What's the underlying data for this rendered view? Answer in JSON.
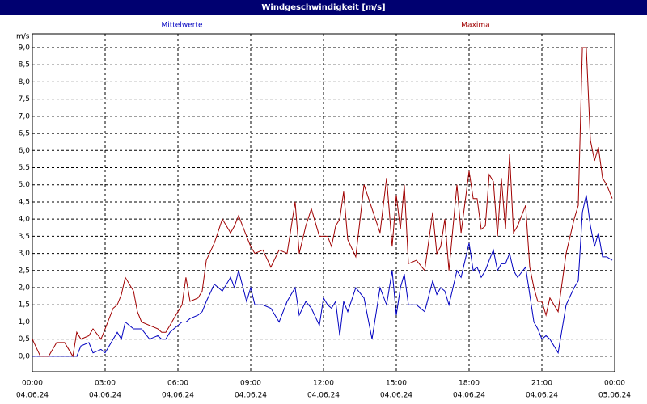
{
  "chart_data": {
    "type": "line",
    "title": "Windgeschwindigkeit [m/s]",
    "y_unit": "m/s",
    "x": [
      0,
      0.33,
      0.67,
      1,
      1.33,
      1.67,
      1.83,
      2,
      2.33,
      2.5,
      2.83,
      3,
      3.33,
      3.5,
      3.67,
      3.83,
      4.17,
      4.33,
      4.5,
      4.83,
      5.17,
      5.33,
      5.5,
      5.67,
      5.83,
      6.17,
      6.33,
      6.5,
      6.83,
      7,
      7.17,
      7.5,
      7.83,
      8.17,
      8.33,
      8.5,
      8.83,
      9,
      9.17,
      9.5,
      9.83,
      10.17,
      10.5,
      10.83,
      11,
      11.27,
      11.5,
      11.83,
      12,
      12.17,
      12.33,
      12.5,
      12.67,
      12.83,
      13,
      13.33,
      13.67,
      14,
      14.33,
      14.6,
      14.83,
      15,
      15.17,
      15.33,
      15.5,
      15.83,
      16.17,
      16.5,
      16.67,
      16.83,
      17,
      17.17,
      17.5,
      17.67,
      18,
      18.17,
      18.33,
      18.5,
      18.67,
      18.83,
      19,
      19.17,
      19.33,
      19.5,
      19.67,
      19.83,
      20,
      20.33,
      20.5,
      20.67,
      20.83,
      21,
      21.17,
      21.33,
      21.67,
      22,
      22.33,
      22.5,
      22.67,
      22.83,
      23,
      23.17,
      23.33,
      23.5,
      23.67,
      23.9
    ],
    "series": [
      {
        "name": "Mittelwerte",
        "color": "#0000c0",
        "values": [
          0,
          0,
          0,
          0,
          0,
          0,
          0,
          0.3,
          0.4,
          0.1,
          0.2,
          0.1,
          0.5,
          0.7,
          0.5,
          1.0,
          0.8,
          0.8,
          0.8,
          0.5,
          0.6,
          0.5,
          0.5,
          0.7,
          0.8,
          1.0,
          1.0,
          1.1,
          1.2,
          1.3,
          1.6,
          2.1,
          1.9,
          2.3,
          2.0,
          2.5,
          1.6,
          2.0,
          1.5,
          1.5,
          1.4,
          1.0,
          1.6,
          2.0,
          1.2,
          1.6,
          1.4,
          0.9,
          1.7,
          1.5,
          1.4,
          1.6,
          0.6,
          1.6,
          1.3,
          2.0,
          1.7,
          0.5,
          2.0,
          1.5,
          2.5,
          1.2,
          2.0,
          2.4,
          1.5,
          1.5,
          1.3,
          2.2,
          1.8,
          2.0,
          1.9,
          1.5,
          2.5,
          2.3,
          3.3,
          2.5,
          2.6,
          2.3,
          2.5,
          2.8,
          3.1,
          2.5,
          2.7,
          2.7,
          3.0,
          2.5,
          2.3,
          2.6,
          1.8,
          1.0,
          0.8,
          0.5,
          0.6,
          0.5,
          0.1,
          1.5,
          2.0,
          2.2,
          4.2,
          4.7,
          3.8,
          3.2,
          3.6,
          2.9,
          2.9,
          2.8
        ]
      },
      {
        "name": "Maxima",
        "color": "#a00000",
        "values": [
          0.5,
          0,
          0,
          0.4,
          0.4,
          0,
          0.7,
          0.5,
          0.6,
          0.8,
          0.5,
          0.8,
          1.4,
          1.5,
          1.8,
          2.3,
          1.9,
          1.3,
          1.0,
          0.9,
          0.8,
          0.7,
          0.7,
          0.9,
          1.1,
          1.5,
          2.3,
          1.6,
          1.7,
          1.9,
          2.8,
          3.3,
          4.0,
          3.6,
          3.8,
          4.1,
          3.5,
          3.2,
          3.0,
          3.1,
          2.6,
          3.1,
          3.0,
          4.5,
          3.0,
          3.8,
          4.3,
          3.5,
          3.5,
          3.5,
          3.2,
          3.8,
          4.0,
          4.8,
          3.4,
          2.9,
          5.0,
          4.3,
          3.6,
          5.2,
          3.2,
          4.7,
          3.7,
          5.0,
          2.7,
          2.8,
          2.5,
          4.2,
          3.0,
          3.2,
          4.0,
          2.5,
          5.0,
          3.6,
          5.4,
          4.6,
          4.6,
          3.7,
          3.8,
          5.3,
          5.1,
          3.5,
          5.2,
          3.7,
          5.9,
          3.6,
          3.8,
          4.4,
          2.6,
          2.0,
          1.6,
          1.6,
          1.2,
          1.7,
          1.3,
          3.0,
          4.0,
          4.4,
          9.0,
          9.0,
          6.3,
          5.7,
          6.1,
          5.2,
          5.0,
          4.6
        ]
      }
    ],
    "xlim": [
      0,
      24
    ],
    "xticks": [
      {
        "value": 0,
        "label": "00:00",
        "date": "04.06.24"
      },
      {
        "value": 3,
        "label": "03:00",
        "date": "04.06.24"
      },
      {
        "value": 6,
        "label": "06:00",
        "date": "04.06.24"
      },
      {
        "value": 9,
        "label": "09:00",
        "date": "04.06.24"
      },
      {
        "value": 12,
        "label": "12:00",
        "date": "04.06.24"
      },
      {
        "value": 15,
        "label": "15:00",
        "date": "04.06.24"
      },
      {
        "value": 18,
        "label": "18:00",
        "date": "04.06.24"
      },
      {
        "value": 21,
        "label": "21:00",
        "date": "04.06.24"
      },
      {
        "value": 24,
        "label": "00:00",
        "date": "05.06.24"
      }
    ],
    "ylim": [
      -0.45,
      9.4
    ],
    "yticks": [
      {
        "value": 0,
        "label": "0,0"
      },
      {
        "value": 0.5,
        "label": "0,5"
      },
      {
        "value": 1,
        "label": "1,0"
      },
      {
        "value": 1.5,
        "label": "1,5"
      },
      {
        "value": 2,
        "label": "2,0"
      },
      {
        "value": 2.5,
        "label": "2,5"
      },
      {
        "value": 3,
        "label": "3,0"
      },
      {
        "value": 3.5,
        "label": "3,5"
      },
      {
        "value": 4,
        "label": "4,0"
      },
      {
        "value": 4.5,
        "label": "4,5"
      },
      {
        "value": 5,
        "label": "5,0"
      },
      {
        "value": 5.5,
        "label": "5,5"
      },
      {
        "value": 6,
        "label": "6,0"
      },
      {
        "value": 6.5,
        "label": "6,5"
      },
      {
        "value": 7,
        "label": "7,0"
      },
      {
        "value": 7.5,
        "label": "7,5"
      },
      {
        "value": 8,
        "label": "8,0"
      },
      {
        "value": 8.5,
        "label": "8,5"
      },
      {
        "value": 9,
        "label": "9,0"
      }
    ],
    "grid": true
  }
}
